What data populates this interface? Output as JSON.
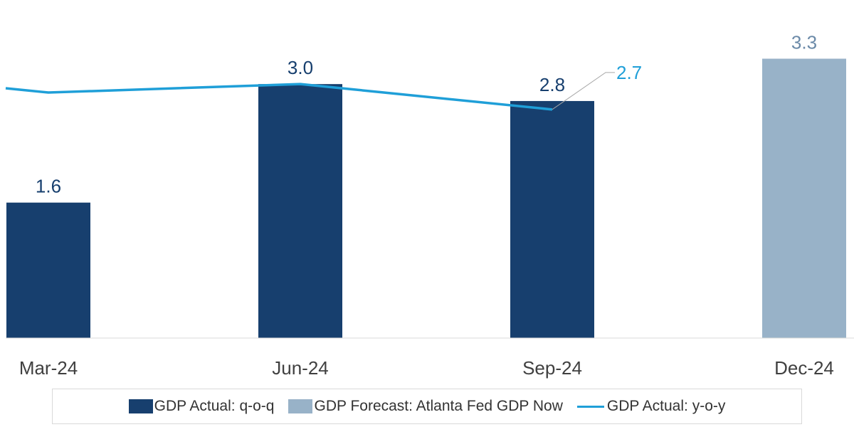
{
  "chart_data": {
    "type": "bar",
    "categories": [
      "Mar-24",
      "Jun-24",
      "Sep-24",
      "Dec-24"
    ],
    "series": [
      {
        "name": "GDP Actual: q-o-q",
        "kind": "bar",
        "color": "#173f6e",
        "values": [
          1.6,
          3.0,
          2.8,
          null
        ],
        "labels": [
          "1.6",
          "3.0",
          "2.8",
          ""
        ]
      },
      {
        "name": "GDP Forecast: Atlanta Fed GDP Now",
        "kind": "bar",
        "color": "#98b2c8",
        "values": [
          null,
          null,
          null,
          3.3
        ],
        "labels": [
          "",
          "",
          "",
          "3.3"
        ]
      },
      {
        "name": "GDP Actual: y-o-y",
        "kind": "line",
        "color": "#1f9fd8",
        "values": [
          2.9,
          3.0,
          2.7,
          null
        ],
        "labels": [
          "",
          "",
          "2.7",
          ""
        ]
      }
    ],
    "ylim": [
      0,
      3.8
    ],
    "title": "",
    "xlabel": "",
    "ylabel": "",
    "grid": false,
    "legend": "bottom"
  }
}
